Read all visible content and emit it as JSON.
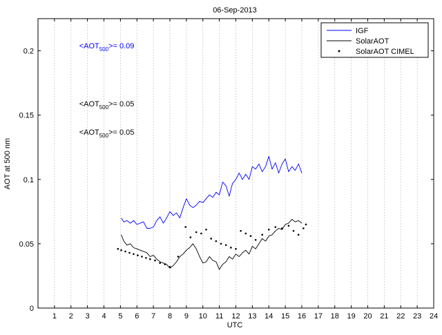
{
  "chart_data": {
    "type": "line",
    "title": "06-Sep-2013",
    "xlabel": "UTC",
    "ylabel": "AOT at 500 nm",
    "xlim": [
      0,
      24
    ],
    "ylim": [
      0,
      0.225
    ],
    "grid": "vertical-dashed",
    "x_ticks": [
      1,
      2,
      3,
      4,
      5,
      6,
      7,
      8,
      9,
      10,
      11,
      12,
      13,
      14,
      15,
      16,
      17,
      18,
      19,
      20,
      21,
      22,
      23,
      24
    ],
    "y_ticks": [
      0,
      0.05,
      0.1,
      0.15,
      0.2
    ],
    "legend": {
      "position": "top-right",
      "entries": [
        {
          "label": "IGF",
          "style": "line",
          "color": "#0000ff"
        },
        {
          "label": "SolarAOT",
          "style": "line",
          "color": "#000000"
        },
        {
          "label": "SolarAOT CIMEL",
          "style": "marker",
          "color": "#000000"
        }
      ]
    },
    "annotations": [
      {
        "text": "<AOT500>= 0.09",
        "prefix": "<AOT",
        "sub": "500",
        "suffix": ">= 0.09",
        "color": "#0000ff",
        "x": 2.5,
        "y": 0.204
      },
      {
        "text": "<AOT500>= 0.05",
        "prefix": "<AOT",
        "sub": "500",
        "suffix": ">= 0.05",
        "color": "#000000",
        "x": 2.5,
        "y": 0.159
      },
      {
        "text": "<AOT500>= 0.05",
        "prefix": "<AOT",
        "sub": "500",
        "suffix": ">= 0.05",
        "color": "#000000",
        "x": 2.5,
        "y": 0.137
      }
    ],
    "series": [
      {
        "name": "IGF",
        "kind": "line",
        "color": "#0000ff",
        "x": [
          5.05,
          5.2,
          5.4,
          5.6,
          5.8,
          6.0,
          6.2,
          6.4,
          6.6,
          6.8,
          7.0,
          7.2,
          7.4,
          7.6,
          7.8,
          8.0,
          8.2,
          8.4,
          8.6,
          8.8,
          9.0,
          9.2,
          9.4,
          9.6,
          9.8,
          10.0,
          10.2,
          10.4,
          10.6,
          10.8,
          11.0,
          11.2,
          11.4,
          11.6,
          11.8,
          12.0,
          12.2,
          12.4,
          12.6,
          12.8,
          13.0,
          13.2,
          13.4,
          13.6,
          13.8,
          14.0,
          14.2,
          14.4,
          14.6,
          14.8,
          15.0,
          15.2,
          15.4,
          15.6,
          15.8,
          16.0
        ],
        "y": [
          0.07,
          0.067,
          0.068,
          0.066,
          0.068,
          0.065,
          0.066,
          0.067,
          0.062,
          0.062,
          0.063,
          0.068,
          0.071,
          0.066,
          0.07,
          0.075,
          0.072,
          0.074,
          0.07,
          0.078,
          0.085,
          0.08,
          0.078,
          0.08,
          0.083,
          0.082,
          0.085,
          0.088,
          0.086,
          0.09,
          0.088,
          0.098,
          0.095,
          0.087,
          0.097,
          0.1,
          0.105,
          0.1,
          0.104,
          0.1,
          0.11,
          0.108,
          0.112,
          0.106,
          0.11,
          0.118,
          0.108,
          0.113,
          0.105,
          0.112,
          0.116,
          0.106,
          0.11,
          0.107,
          0.112,
          0.105
        ]
      },
      {
        "name": "SolarAOT",
        "kind": "line",
        "color": "#000000",
        "x": [
          5.05,
          5.2,
          5.4,
          5.6,
          5.8,
          6.0,
          6.2,
          6.4,
          6.6,
          6.8,
          7.0,
          7.2,
          7.4,
          7.6,
          7.8,
          8.0,
          8.2,
          8.4,
          8.6,
          8.8,
          9.0,
          9.2,
          9.4,
          9.6,
          9.8,
          10.0,
          10.2,
          10.4,
          10.6,
          10.8,
          11.0,
          11.2,
          11.4,
          11.6,
          11.8,
          12.0,
          12.2,
          12.4,
          12.6,
          12.8,
          13.0,
          13.2,
          13.4,
          13.6,
          13.8,
          14.0,
          14.2,
          14.4,
          14.6,
          14.8,
          15.0,
          15.2,
          15.4,
          15.6,
          15.8,
          16.0
        ],
        "y": [
          0.057,
          0.052,
          0.049,
          0.05,
          0.047,
          0.046,
          0.045,
          0.044,
          0.043,
          0.04,
          0.041,
          0.038,
          0.036,
          0.035,
          0.034,
          0.031,
          0.033,
          0.036,
          0.04,
          0.042,
          0.045,
          0.047,
          0.05,
          0.046,
          0.04,
          0.035,
          0.036,
          0.04,
          0.037,
          0.036,
          0.03,
          0.034,
          0.036,
          0.04,
          0.038,
          0.042,
          0.04,
          0.043,
          0.045,
          0.042,
          0.048,
          0.046,
          0.05,
          0.054,
          0.052,
          0.056,
          0.057,
          0.06,
          0.062,
          0.061,
          0.065,
          0.066,
          0.069,
          0.067,
          0.068,
          0.066
        ]
      },
      {
        "name": "SolarAOT CIMEL",
        "kind": "marker",
        "color": "#000000",
        "x": [
          4.85,
          5.05,
          5.3,
          5.55,
          5.8,
          6.05,
          6.3,
          6.55,
          6.8,
          7.1,
          7.4,
          7.7,
          8.0,
          8.5,
          8.95,
          9.25,
          9.6,
          9.9,
          10.2,
          10.5,
          10.8,
          11.1,
          11.4,
          11.7,
          12.0,
          12.3,
          12.6,
          12.9,
          13.2,
          13.6,
          14.0,
          14.4,
          14.8,
          15.2,
          15.5,
          15.8,
          16.1,
          16.25
        ],
        "y": [
          0.046,
          0.045,
          0.044,
          0.043,
          0.042,
          0.041,
          0.04,
          0.039,
          0.038,
          0.037,
          0.035,
          0.034,
          0.032,
          0.04,
          0.063,
          0.055,
          0.059,
          0.058,
          0.061,
          0.054,
          0.052,
          0.05,
          0.049,
          0.047,
          0.046,
          0.06,
          0.058,
          0.056,
          0.053,
          0.057,
          0.061,
          0.063,
          0.062,
          0.064,
          0.06,
          0.057,
          0.062,
          0.065
        ]
      }
    ]
  }
}
